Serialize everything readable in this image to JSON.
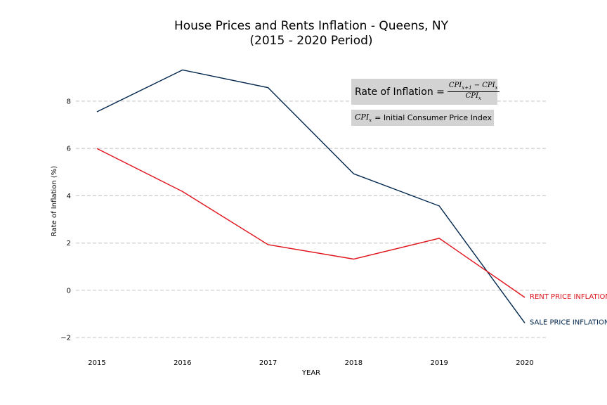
{
  "chart_data": {
    "type": "line",
    "title": "House Prices and Rents Inflation - Queens, NY",
    "subtitle": "(2015 - 2020 Period)",
    "xlabel": "YEAR",
    "ylabel": "Rate of Inflation (%)",
    "x": [
      "2015",
      "2016",
      "2017",
      "2018",
      "2019",
      "2020"
    ],
    "yticks": [
      "−2",
      "0",
      "2",
      "4",
      "6",
      "8"
    ],
    "ytick_values": [
      -2,
      0,
      2,
      4,
      6,
      8
    ],
    "ylim": [
      -2.5,
      9.9
    ],
    "grid": "horizontal dashed",
    "series": [
      {
        "name": "SALE PRICE INFLATION",
        "color": "#00264d",
        "values": [
          7.55,
          9.32,
          8.57,
          4.93,
          3.57,
          -1.38
        ]
      },
      {
        "name": "RENT PRICE INFLATION",
        "color": "#e0121b",
        "values": [
          6.0,
          4.18,
          1.93,
          1.32,
          2.2,
          -0.3
        ]
      }
    ]
  },
  "annotations": {
    "formula_label": "Rate of Inflation =",
    "formula_numerator": "CPI x+1 − CPI x",
    "formula_denominator": "CPI x",
    "definition_symbol": "CPI x",
    "definition_text": "= Initial Consumer Price Index"
  }
}
